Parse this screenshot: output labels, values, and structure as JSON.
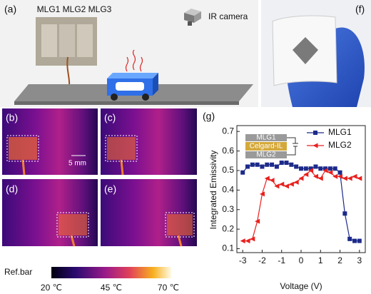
{
  "panels": {
    "a": "(a)",
    "b": "(b)",
    "c": "(c)",
    "d": "(d)",
    "e": "(e)",
    "f": "(f)",
    "g": "(g)"
  },
  "sample_labels": [
    "MLG1",
    "MLG2",
    "MLG3"
  ],
  "camera_label": "IR camera",
  "scale_bar": "5 mm",
  "ref_bar": {
    "title": "Ref.bar",
    "labels": [
      "20 ℃",
      "45 ℃",
      "70 ℃"
    ]
  },
  "chart_data": {
    "type": "line",
    "xlabel": "Voltage (V)",
    "ylabel": "Integrated Emissivity",
    "x": [
      -3,
      -2.75,
      -2.5,
      -2.25,
      -2,
      -1.75,
      -1.5,
      -1.25,
      -1,
      -0.75,
      -0.5,
      -0.25,
      0,
      0.25,
      0.5,
      0.75,
      1,
      1.25,
      1.5,
      1.75,
      2,
      2.25,
      2.5,
      2.75,
      3
    ],
    "series": [
      {
        "name": "MLG1",
        "color": "#1c2a8a",
        "marker": "square",
        "values": [
          0.49,
          0.52,
          0.53,
          0.53,
          0.52,
          0.53,
          0.53,
          0.52,
          0.54,
          0.54,
          0.53,
          0.52,
          0.51,
          0.51,
          0.51,
          0.52,
          0.51,
          0.51,
          0.51,
          0.51,
          0.49,
          0.28,
          0.15,
          0.14,
          0.14
        ]
      },
      {
        "name": "MLG2",
        "color": "#e8201e",
        "marker": "triangle",
        "values": [
          0.14,
          0.14,
          0.15,
          0.24,
          0.38,
          0.46,
          0.45,
          0.42,
          0.43,
          0.42,
          0.43,
          0.44,
          0.46,
          0.48,
          0.5,
          0.47,
          0.46,
          0.5,
          0.49,
          0.47,
          0.47,
          0.46,
          0.46,
          0.47,
          0.46
        ]
      }
    ],
    "xlim": [
      -3.3,
      3.3
    ],
    "ylim": [
      0.08,
      0.73
    ],
    "xticks": [
      -3,
      -2,
      -1,
      0,
      1,
      2,
      3
    ],
    "yticks": [
      0.1,
      0.2,
      0.3,
      0.4,
      0.5,
      0.6,
      0.7
    ],
    "legend": "upper right",
    "inset": [
      "MLG1",
      "Celgard-IL",
      "MLG2"
    ]
  }
}
